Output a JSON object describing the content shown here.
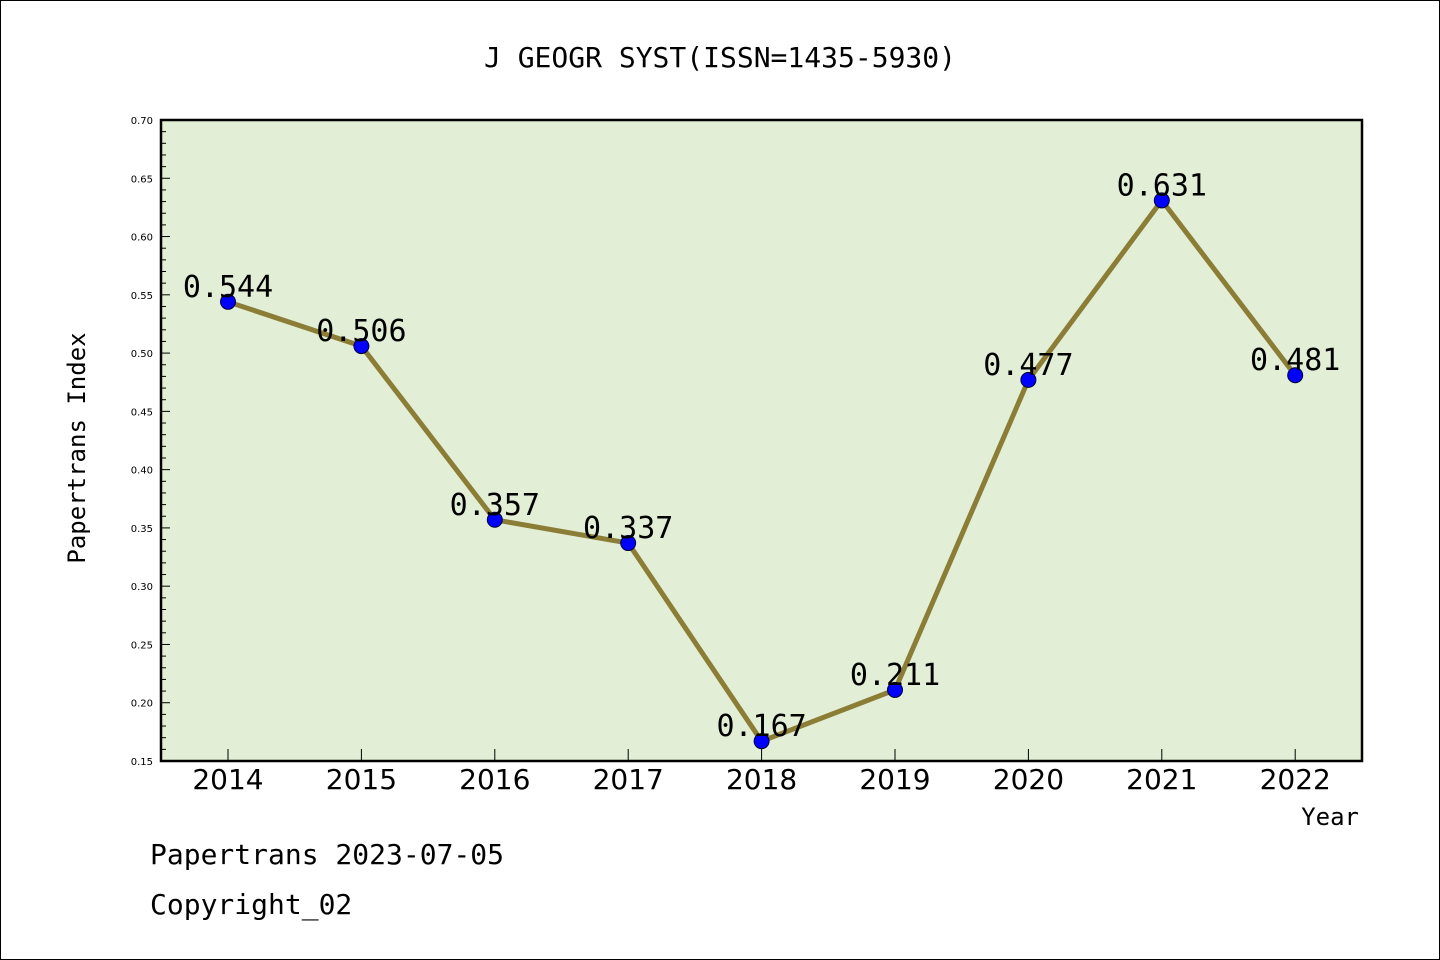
{
  "chart_data": {
    "type": "line",
    "title": "J GEOGR SYST(ISSN=1435-5930)",
    "xlabel": "Year",
    "ylabel": "Papertrans Index",
    "categories": [
      "2014",
      "2015",
      "2016",
      "2017",
      "2018",
      "2019",
      "2020",
      "2021",
      "2022"
    ],
    "series": [
      {
        "values": [
          0.544,
          0.506,
          0.357,
          0.337,
          0.167,
          0.211,
          0.477,
          0.631,
          0.481
        ],
        "labels": [
          "0.544",
          "0.506",
          "0.357",
          "0.337",
          "0.167",
          "0.211",
          "0.477",
          "0.631",
          "0.481"
        ],
        "line_color": "#8b7d36",
        "marker_color": "#0000ff"
      }
    ],
    "ylim": [
      0.15,
      0.7
    ],
    "yticks": [
      "0.15",
      "0.20",
      "0.25",
      "0.30",
      "0.35",
      "0.40",
      "0.45",
      "0.50",
      "0.55",
      "0.60",
      "0.65",
      "0.70"
    ],
    "plot_background": "#e2efd6",
    "grid": false,
    "legend": "none"
  },
  "footer": {
    "line1": "Papertrans 2023-07-05",
    "line2": "Copyright_02"
  }
}
